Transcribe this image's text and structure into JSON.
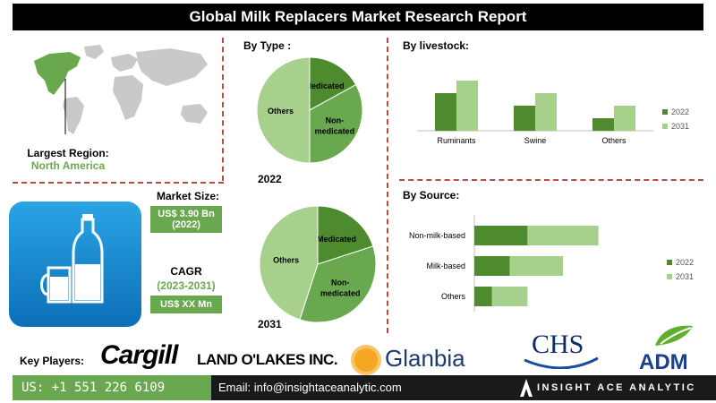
{
  "header": {
    "title": "Global Milk Replacers Market Research Report"
  },
  "region": {
    "label": "Largest Region:",
    "value": "North America"
  },
  "market_size": {
    "label": "Market Size:",
    "value": "US$ 3.90 Bn",
    "year": "(2022)"
  },
  "cagr": {
    "label": "CAGR",
    "period": "(2023-2031)",
    "value": "US$ XX Mn"
  },
  "by_type": {
    "title": "By Type :",
    "year_2022": "2022",
    "year_2031": "2031"
  },
  "by_livestock": {
    "title": "By livestock:"
  },
  "by_source": {
    "title": "By Source:"
  },
  "key_players": {
    "label": "Key Players:",
    "logos": [
      "Cargill",
      "LAND O'LAKES INC.",
      "Glanbia",
      "CHS",
      "ADM"
    ]
  },
  "footer": {
    "phone": "US: +1 551 226 6109",
    "email": "Email: info@insightaceanalytic.com",
    "brand": "INSIGHT ACE ANALYTIC"
  },
  "colors": {
    "dark_green": "#4e8a2e",
    "green": "#6aa84f",
    "light_green": "#a8d08d",
    "accent": "#b94a48"
  },
  "chart_data": [
    {
      "type": "pie",
      "title": "By Type :",
      "label": "2022",
      "slices": [
        {
          "name": "Medicated",
          "value": 17,
          "color": "#4e8a2e"
        },
        {
          "name": "Non-medicated",
          "value": 33,
          "color": "#6aa84f"
        },
        {
          "name": "Others",
          "value": 50,
          "color": "#a8d08d"
        }
      ]
    },
    {
      "type": "pie",
      "title": "By Type :",
      "label": "2031",
      "slices": [
        {
          "name": "Medicated",
          "value": 20,
          "color": "#4e8a2e"
        },
        {
          "name": "Non-medicated",
          "value": 35,
          "color": "#6aa84f"
        },
        {
          "name": "Others",
          "value": 45,
          "color": "#a8d08d"
        }
      ]
    },
    {
      "type": "bar",
      "title": "By livestock:",
      "categories": [
        "Ruminants",
        "Swine",
        "Others"
      ],
      "series": [
        {
          "name": "2022",
          "values": [
            60,
            40,
            20
          ],
          "color": "#4e8a2e"
        },
        {
          "name": "2031",
          "values": [
            80,
            60,
            40
          ],
          "color": "#a8d08d"
        }
      ],
      "ylim": [
        0,
        100
      ],
      "legend": "right"
    },
    {
      "type": "bar",
      "orientation": "horizontal",
      "title": "By Source:",
      "categories": [
        "Non-milk-based",
        "Milk-based",
        "Others"
      ],
      "series": [
        {
          "name": "2022",
          "values": [
            30,
            20,
            10
          ],
          "color": "#4e8a2e"
        },
        {
          "name": "2031",
          "values": [
            40,
            30,
            20
          ],
          "color": "#a8d08d"
        }
      ],
      "stacked": true,
      "xlim": [
        0,
        100
      ],
      "legend": "right"
    }
  ]
}
